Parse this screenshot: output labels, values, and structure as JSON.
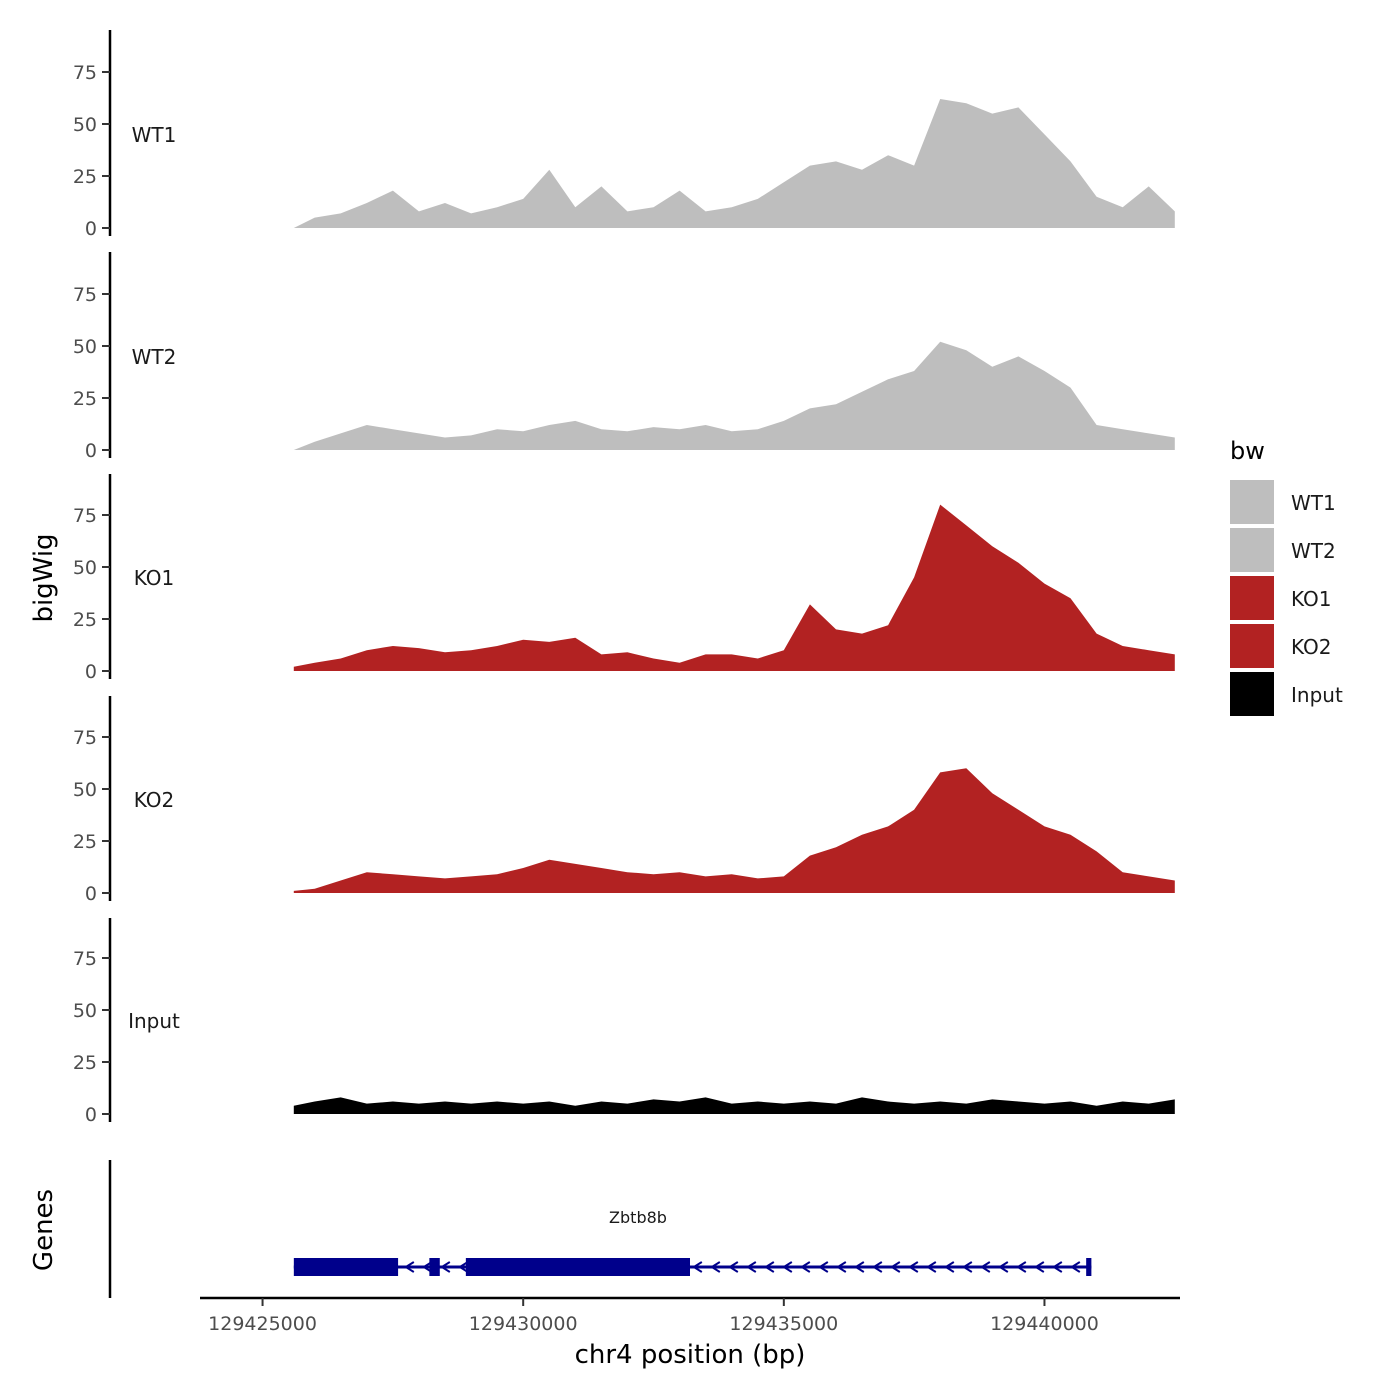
{
  "chart_data": {
    "type": "area",
    "chromosome": "chr4",
    "xlabel": "chr4 position (bp)",
    "ylabel": "bigWig",
    "genes_label": "Genes",
    "xlim": [
      129423800,
      129442600
    ],
    "x_ticks": [
      129425000,
      129430000,
      129435000,
      129440000
    ],
    "x_tick_labels": [
      "129425000",
      "129430000",
      "129435000",
      "129440000"
    ],
    "ylim": [
      0,
      95
    ],
    "y_ticks": [
      0,
      25,
      50,
      75
    ],
    "y_tick_labels": [
      "0",
      "25",
      "50",
      "75"
    ],
    "legend": {
      "title": "bw",
      "position": "right",
      "entries": [
        {
          "label": "WT1",
          "color": "#bebebe"
        },
        {
          "label": "WT2",
          "color": "#bebebe"
        },
        {
          "label": "KO1",
          "color": "#b22222"
        },
        {
          "label": "KO2",
          "color": "#b22222"
        },
        {
          "label": "Input",
          "color": "#000000"
        }
      ]
    },
    "series": [
      {
        "name": "WT1",
        "color": "#bebebe",
        "x": [
          129425600,
          129426000,
          129426500,
          129427000,
          129427500,
          129428000,
          129428500,
          129429000,
          129429500,
          129430000,
          129430500,
          129431000,
          129431500,
          129432000,
          129432500,
          129433000,
          129433500,
          129434000,
          129434500,
          129435000,
          129435500,
          129436000,
          129436500,
          129437000,
          129437500,
          129438000,
          129438500,
          129439000,
          129439500,
          129440000,
          129440500,
          129441000,
          129441500,
          129442000,
          129442500
        ],
        "y": [
          0,
          5,
          7,
          12,
          18,
          8,
          12,
          7,
          10,
          14,
          28,
          10,
          20,
          8,
          10,
          18,
          8,
          10,
          14,
          22,
          30,
          32,
          28,
          35,
          30,
          62,
          60,
          55,
          58,
          45,
          32,
          15,
          10,
          20,
          8
        ]
      },
      {
        "name": "WT2",
        "color": "#bebebe",
        "x": [
          129425600,
          129426000,
          129426500,
          129427000,
          129427500,
          129428000,
          129428500,
          129429000,
          129429500,
          129430000,
          129430500,
          129431000,
          129431500,
          129432000,
          129432500,
          129433000,
          129433500,
          129434000,
          129434500,
          129435000,
          129435500,
          129436000,
          129436500,
          129437000,
          129437500,
          129438000,
          129438500,
          129439000,
          129439500,
          129440000,
          129440500,
          129441000,
          129441500,
          129442000,
          129442500
        ],
        "y": [
          0,
          4,
          8,
          12,
          10,
          8,
          6,
          7,
          10,
          9,
          12,
          14,
          10,
          9,
          11,
          10,
          12,
          9,
          10,
          14,
          20,
          22,
          28,
          34,
          38,
          52,
          48,
          40,
          45,
          38,
          30,
          12,
          10,
          8,
          6
        ]
      },
      {
        "name": "KO1",
        "color": "#b22222",
        "x": [
          129425600,
          129426000,
          129426500,
          129427000,
          129427500,
          129428000,
          129428500,
          129429000,
          129429500,
          129430000,
          129430500,
          129431000,
          129431500,
          129432000,
          129432500,
          129433000,
          129433500,
          129434000,
          129434500,
          129435000,
          129435500,
          129436000,
          129436500,
          129437000,
          129437500,
          129438000,
          129438500,
          129439000,
          129439500,
          129440000,
          129440500,
          129441000,
          129441500,
          129442000,
          129442500
        ],
        "y": [
          2,
          4,
          6,
          10,
          12,
          11,
          9,
          10,
          12,
          15,
          14,
          16,
          8,
          9,
          6,
          4,
          8,
          8,
          6,
          10,
          32,
          20,
          18,
          22,
          45,
          80,
          70,
          60,
          52,
          42,
          35,
          18,
          12,
          10,
          8
        ]
      },
      {
        "name": "KO2",
        "color": "#b22222",
        "x": [
          129425600,
          129426000,
          129426500,
          129427000,
          129427500,
          129428000,
          129428500,
          129429000,
          129429500,
          129430000,
          129430500,
          129431000,
          129431500,
          129432000,
          129432500,
          129433000,
          129433500,
          129434000,
          129434500,
          129435000,
          129435500,
          129436000,
          129436500,
          129437000,
          129437500,
          129438000,
          129438500,
          129439000,
          129439500,
          129440000,
          129440500,
          129441000,
          129441500,
          129442000,
          129442500
        ],
        "y": [
          1,
          2,
          6,
          10,
          9,
          8,
          7,
          8,
          9,
          12,
          16,
          14,
          12,
          10,
          9,
          10,
          8,
          9,
          7,
          8,
          18,
          22,
          28,
          32,
          40,
          58,
          60,
          48,
          40,
          32,
          28,
          20,
          10,
          8,
          6
        ]
      },
      {
        "name": "Input",
        "color": "#000000",
        "x": [
          129425600,
          129426000,
          129426500,
          129427000,
          129427500,
          129428000,
          129428500,
          129429000,
          129429500,
          129430000,
          129430500,
          129431000,
          129431500,
          129432000,
          129432500,
          129433000,
          129433500,
          129434000,
          129434500,
          129435000,
          129435500,
          129436000,
          129436500,
          129437000,
          129437500,
          129438000,
          129438500,
          129439000,
          129439500,
          129440000,
          129440500,
          129441000,
          129441500,
          129442000,
          129442500
        ],
        "y": [
          4,
          6,
          8,
          5,
          6,
          5,
          6,
          5,
          6,
          5,
          6,
          4,
          6,
          5,
          7,
          6,
          8,
          5,
          6,
          5,
          6,
          5,
          8,
          6,
          5,
          6,
          5,
          7,
          6,
          5,
          6,
          4,
          6,
          5,
          7
        ]
      }
    ],
    "genes": [
      {
        "name": "Zbtb8b",
        "strand": "-",
        "start": 129425600,
        "end": 129440900,
        "exons": [
          [
            129425600,
            129427600
          ],
          [
            129428200,
            129428400
          ],
          [
            129428900,
            129433200
          ],
          [
            129440800,
            129440900
          ]
        ]
      }
    ]
  }
}
